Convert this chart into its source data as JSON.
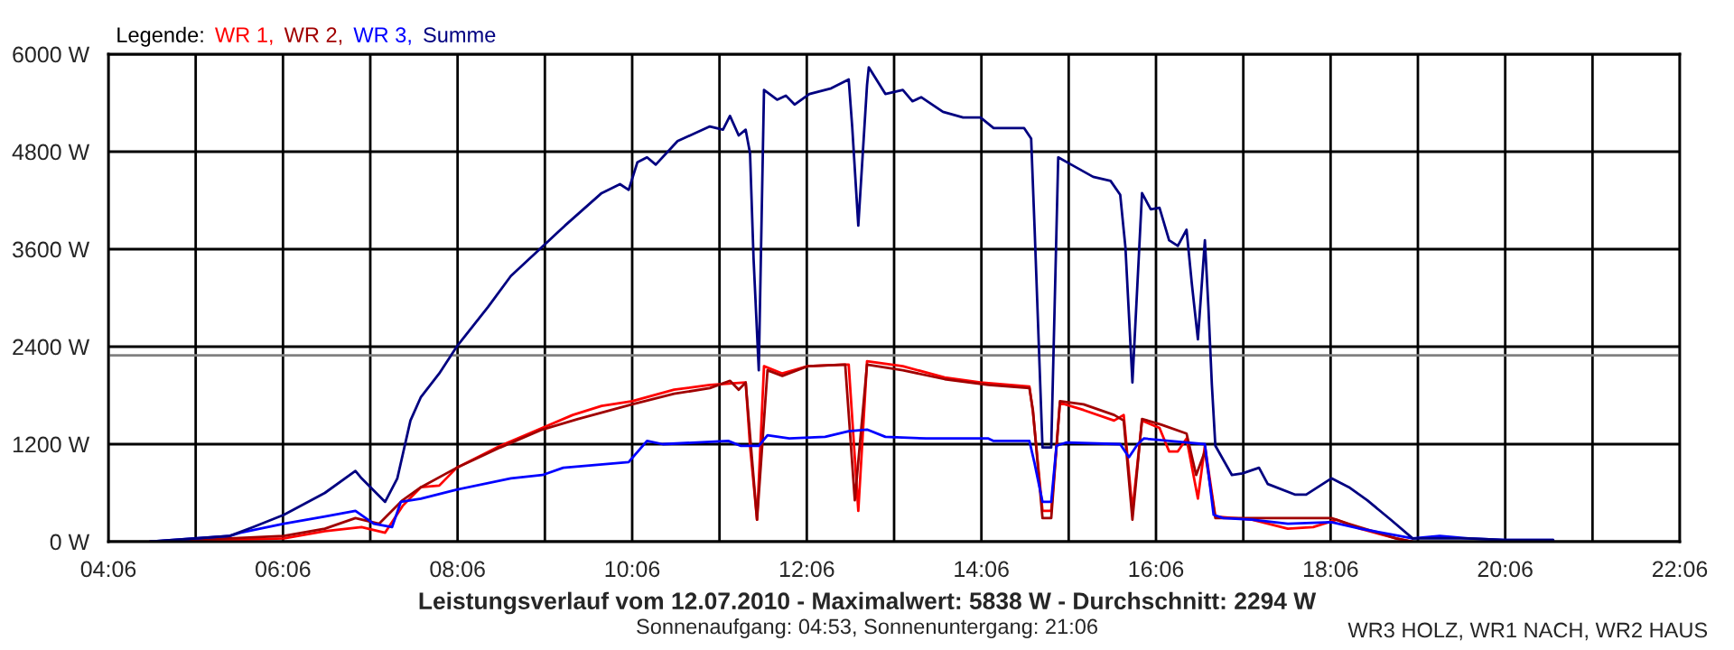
{
  "chart_data": {
    "type": "line",
    "title": "Leistungsverlauf vom 12.07.2010 - Maximalwert: 5838 W - Durchschnitt: 2294 W",
    "annotations": [
      "Sonnenaufgang: 04:53, Sonnenuntergang: 21:06",
      "WR3 HOLZ, WR1 NACH, WR2 HAUS"
    ],
    "legend_title": "Legende:",
    "legend": "top left",
    "grid": true,
    "line_style": "solid",
    "xlim": [
      4.1,
      22.1
    ],
    "xticks": [
      {
        "value": 4.1,
        "label": "04:06"
      },
      {
        "value": 5.1,
        "label": null
      },
      {
        "value": 6.1,
        "label": "06:06"
      },
      {
        "value": 7.1,
        "label": null
      },
      {
        "value": 8.1,
        "label": "08:06"
      },
      {
        "value": 9.1,
        "label": null
      },
      {
        "value": 10.1,
        "label": "10:06"
      },
      {
        "value": 11.1,
        "label": null
      },
      {
        "value": 12.1,
        "label": "12:06"
      },
      {
        "value": 13.1,
        "label": null
      },
      {
        "value": 14.1,
        "label": "14:06"
      },
      {
        "value": 15.1,
        "label": null
      },
      {
        "value": 16.1,
        "label": "16:06"
      },
      {
        "value": 17.1,
        "label": null
      },
      {
        "value": 18.1,
        "label": "18:06"
      },
      {
        "value": 19.1,
        "label": null
      },
      {
        "value": 20.1,
        "label": "20:06"
      },
      {
        "value": 21.1,
        "label": null
      },
      {
        "value": 22.1,
        "label": "22:06"
      }
    ],
    "ylim": [
      0,
      6000
    ],
    "yticks": [
      {
        "value": 0,
        "label": "0 W"
      },
      {
        "value": 1200,
        "label": "1200 W"
      },
      {
        "value": 2400,
        "label": "2400 W"
      },
      {
        "value": 3600,
        "label": "3600 W"
      },
      {
        "value": 4800,
        "label": "4800 W"
      },
      {
        "value": 6000,
        "label": "6000 W"
      }
    ],
    "ref_lines": [
      {
        "axis": "y",
        "value": 2294,
        "color": "#808080"
      }
    ],
    "series": [
      {
        "name": "WR 1,",
        "color": "#ff0000",
        "x": [
          4.58,
          5.49,
          6.11,
          6.58,
          7.0,
          7.27,
          7.47,
          7.68,
          7.89,
          8.09,
          8.59,
          9.07,
          9.42,
          9.75,
          10.1,
          10.58,
          10.99,
          11.4,
          11.45,
          11.53,
          11.61,
          11.82,
          12.11,
          12.52,
          12.58,
          12.69,
          12.79,
          13.2,
          13.68,
          14.09,
          14.65,
          14.69,
          14.8,
          14.9,
          15.0,
          15.27,
          15.62,
          15.73,
          15.83,
          15.94,
          16.14,
          16.25,
          16.35,
          16.45,
          16.58,
          16.66,
          16.78,
          17.2,
          17.61,
          17.9,
          18.17,
          18.44,
          18.85,
          19.04
        ],
        "values": [
          0,
          20,
          40,
          130,
          180,
          110,
          440,
          670,
          690,
          910,
          1180,
          1400,
          1560,
          1670,
          1730,
          1870,
          1930,
          1960,
          1180,
          270,
          2160,
          2070,
          2160,
          2180,
          2180,
          380,
          2220,
          2160,
          2020,
          1960,
          1910,
          1600,
          380,
          380,
          1710,
          1620,
          1490,
          1560,
          380,
          1490,
          1400,
          1110,
          1110,
          1270,
          530,
          1180,
          310,
          270,
          160,
          180,
          270,
          160,
          40,
          0
        ]
      },
      {
        "name": "WR 2,",
        "color": "#a00000",
        "x": [
          4.58,
          6.11,
          6.58,
          6.93,
          7.2,
          7.47,
          7.68,
          8.09,
          8.59,
          9.07,
          9.48,
          10.1,
          10.58,
          10.99,
          11.22,
          11.32,
          11.4,
          11.53,
          11.65,
          11.82,
          12.11,
          12.54,
          12.65,
          12.79,
          13.2,
          13.68,
          14.18,
          14.65,
          14.69,
          14.8,
          14.9,
          15.0,
          15.27,
          15.62,
          15.73,
          15.83,
          15.94,
          16.16,
          16.45,
          16.56,
          16.66,
          16.78,
          17.28,
          18.11,
          18.31,
          18.85,
          19.04
        ],
        "values": [
          0,
          70,
          160,
          290,
          220,
          510,
          670,
          910,
          1160,
          1380,
          1510,
          1690,
          1820,
          1890,
          1980,
          1870,
          1960,
          270,
          2110,
          2040,
          2160,
          2180,
          510,
          2180,
          2110,
          2000,
          1930,
          1890,
          1620,
          290,
          290,
          1730,
          1690,
          1560,
          1490,
          270,
          1510,
          1440,
          1330,
          820,
          1110,
          290,
          290,
          290,
          220,
          40,
          0
        ]
      },
      {
        "name": "WR 3,",
        "color": "#0000ff",
        "x": [
          4.58,
          5.49,
          5.61,
          6.11,
          6.58,
          6.93,
          7.14,
          7.35,
          7.45,
          7.68,
          8.09,
          8.71,
          9.07,
          9.31,
          10.06,
          10.27,
          10.45,
          11.2,
          11.34,
          11.55,
          11.65,
          11.9,
          12.31,
          12.58,
          12.79,
          13.0,
          13.47,
          14.18,
          14.24,
          14.65,
          14.71,
          14.8,
          14.9,
          14.96,
          15.07,
          15.69,
          15.79,
          15.89,
          15.96,
          16.45,
          16.66,
          16.76,
          16.87,
          17.2,
          17.61,
          18.11,
          18.44,
          18.79,
          19.04,
          19.35,
          19.68,
          20.09,
          20.65
        ],
        "values": [
          0,
          70,
          110,
          220,
          310,
          380,
          220,
          180,
          490,
          530,
          640,
          780,
          820,
          910,
          980,
          1240,
          1200,
          1240,
          1180,
          1180,
          1310,
          1270,
          1290,
          1360,
          1380,
          1290,
          1270,
          1270,
          1240,
          1240,
          960,
          490,
          490,
          1180,
          1220,
          1200,
          1040,
          1200,
          1270,
          1220,
          1200,
          330,
          290,
          270,
          220,
          240,
          160,
          90,
          40,
          70,
          40,
          20,
          20
        ]
      },
      {
        "name": "Summe",
        "color": "#000080",
        "x": [
          4.58,
          5.49,
          5.76,
          6.11,
          6.58,
          6.93,
          7.0,
          7.27,
          7.41,
          7.56,
          7.68,
          7.89,
          8.09,
          8.45,
          8.71,
          9.11,
          9.33,
          9.75,
          9.96,
          10.06,
          10.16,
          10.27,
          10.37,
          10.62,
          10.99,
          11.14,
          11.22,
          11.32,
          11.4,
          11.45,
          11.49,
          11.55,
          11.61,
          11.76,
          11.86,
          11.96,
          12.13,
          12.38,
          12.58,
          12.62,
          12.69,
          12.79,
          12.81,
          13.0,
          13.2,
          13.31,
          13.41,
          13.66,
          13.89,
          14.09,
          14.24,
          14.59,
          14.67,
          14.71,
          14.8,
          14.9,
          14.98,
          15.13,
          15.38,
          15.58,
          15.69,
          15.75,
          15.83,
          15.94,
          16.04,
          16.14,
          16.25,
          16.35,
          16.45,
          16.51,
          16.58,
          16.66,
          16.7,
          16.74,
          16.78,
          16.97,
          17.09,
          17.28,
          17.38,
          17.69,
          17.82,
          18.11,
          18.31,
          18.52,
          18.79,
          19.04,
          19.68,
          20.09,
          20.65
        ],
        "values": [
          0,
          70,
          180,
          330,
          600,
          870,
          780,
          490,
          780,
          1490,
          1780,
          2070,
          2400,
          2890,
          3270,
          3670,
          3890,
          4290,
          4400,
          4330,
          4670,
          4730,
          4640,
          4930,
          5110,
          5070,
          5240,
          5000,
          5070,
          4780,
          3490,
          2110,
          5560,
          5440,
          5490,
          5380,
          5510,
          5580,
          5690,
          5110,
          3890,
          5620,
          5838,
          5510,
          5560,
          5420,
          5470,
          5290,
          5220,
          5220,
          5090,
          5090,
          4960,
          3840,
          1160,
          1160,
          4730,
          4640,
          4490,
          4440,
          4270,
          3620,
          1960,
          4290,
          4090,
          4110,
          3710,
          3640,
          3840,
          3180,
          2490,
          3710,
          2890,
          1930,
          1180,
          820,
          840,
          910,
          710,
          580,
          580,
          780,
          670,
          510,
          270,
          40,
          40,
          20,
          20
        ]
      }
    ]
  }
}
